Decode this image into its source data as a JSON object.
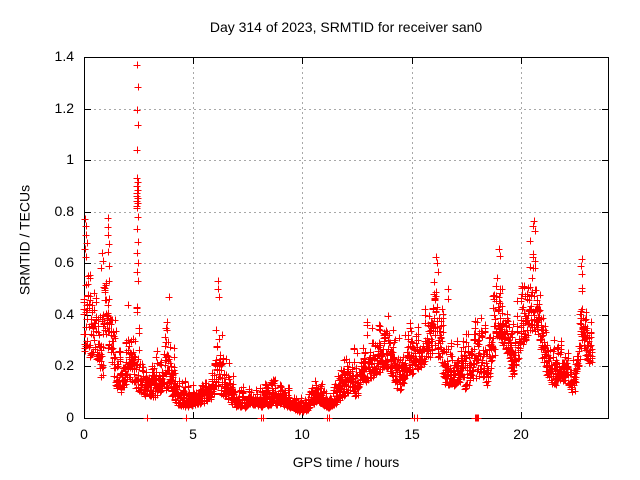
{
  "chart_data": {
    "type": "scatter",
    "title": "Day 314 of 2023, SRMTID for receiver san0",
    "xlabel": "GPS time / hours",
    "ylabel": "SRMTID / TECUs",
    "xlim": [
      0,
      24
    ],
    "ylim": [
      0,
      1.4
    ],
    "x_ticks": [
      0,
      5,
      10,
      15,
      20
    ],
    "y_ticks": [
      0,
      0.2,
      0.4,
      0.6,
      0.8,
      1,
      1.2,
      1.4
    ],
    "grid": true,
    "legend": "none",
    "marker": {
      "shape": "plus",
      "size": 7,
      "color": "#ff0000"
    },
    "axis_color": "#000000",
    "grid_color": "#a8a8a8",
    "series_name": "SRMTID",
    "envelope": [
      [
        0.0,
        0.22,
        0.78
      ],
      [
        0.15,
        0.25,
        0.77
      ],
      [
        0.3,
        0.22,
        0.62
      ],
      [
        0.5,
        0.25,
        0.5
      ],
      [
        0.7,
        0.18,
        0.55
      ],
      [
        0.85,
        0.15,
        0.65
      ],
      [
        1.05,
        0.28,
        0.77
      ],
      [
        1.25,
        0.25,
        0.6
      ],
      [
        1.45,
        0.12,
        0.4
      ],
      [
        1.65,
        0.1,
        0.32
      ],
      [
        1.85,
        0.12,
        0.38
      ],
      [
        2.05,
        0.15,
        0.46
      ],
      [
        2.25,
        0.12,
        0.42
      ],
      [
        2.45,
        0.1,
        0.5
      ],
      [
        2.65,
        0.1,
        0.3
      ],
      [
        2.85,
        0.08,
        0.26
      ],
      [
        3.05,
        0.08,
        0.3
      ],
      [
        3.3,
        0.08,
        0.28
      ],
      [
        3.6,
        0.1,
        0.33
      ],
      [
        3.9,
        0.12,
        0.45
      ],
      [
        4.05,
        0.08,
        0.35
      ],
      [
        4.3,
        0.05,
        0.18
      ],
      [
        4.6,
        0.04,
        0.15
      ],
      [
        4.9,
        0.04,
        0.14
      ],
      [
        5.2,
        0.05,
        0.16
      ],
      [
        5.5,
        0.06,
        0.22
      ],
      [
        5.8,
        0.07,
        0.2
      ],
      [
        6.05,
        0.1,
        0.45
      ],
      [
        6.2,
        0.1,
        0.5
      ],
      [
        6.4,
        0.07,
        0.28
      ],
      [
        6.7,
        0.06,
        0.22
      ],
      [
        7.0,
        0.04,
        0.14
      ],
      [
        7.4,
        0.04,
        0.13
      ],
      [
        7.8,
        0.05,
        0.15
      ],
      [
        8.2,
        0.04,
        0.16
      ],
      [
        8.5,
        0.05,
        0.18
      ],
      [
        8.9,
        0.05,
        0.16
      ],
      [
        9.3,
        0.04,
        0.13
      ],
      [
        9.7,
        0.03,
        0.1
      ],
      [
        10.0,
        0.02,
        0.08
      ],
      [
        10.3,
        0.03,
        0.1
      ],
      [
        10.6,
        0.06,
        0.18
      ],
      [
        10.9,
        0.05,
        0.14
      ],
      [
        11.15,
        0.03,
        0.1
      ],
      [
        11.45,
        0.05,
        0.16
      ],
      [
        11.75,
        0.07,
        0.22
      ],
      [
        12.0,
        0.09,
        0.3
      ],
      [
        12.25,
        0.1,
        0.33
      ],
      [
        12.5,
        0.08,
        0.28
      ],
      [
        12.75,
        0.12,
        0.32
      ],
      [
        13.0,
        0.14,
        0.4
      ],
      [
        13.25,
        0.15,
        0.36
      ],
      [
        13.5,
        0.17,
        0.4
      ],
      [
        13.75,
        0.2,
        0.44
      ],
      [
        14.0,
        0.18,
        0.45
      ],
      [
        14.25,
        0.14,
        0.38
      ],
      [
        14.5,
        0.08,
        0.3
      ],
      [
        14.75,
        0.15,
        0.38
      ],
      [
        15.0,
        0.17,
        0.42
      ],
      [
        15.25,
        0.18,
        0.4
      ],
      [
        15.5,
        0.2,
        0.44
      ],
      [
        15.8,
        0.22,
        0.48
      ],
      [
        16.1,
        0.25,
        0.6
      ],
      [
        16.35,
        0.2,
        0.48
      ],
      [
        16.6,
        0.12,
        0.35
      ],
      [
        16.9,
        0.12,
        0.32
      ],
      [
        17.2,
        0.13,
        0.33
      ],
      [
        17.5,
        0.1,
        0.35
      ],
      [
        17.75,
        0.15,
        0.4
      ],
      [
        18.0,
        0.15,
        0.4
      ],
      [
        18.25,
        0.16,
        0.44
      ],
      [
        18.5,
        0.12,
        0.45
      ],
      [
        18.75,
        0.22,
        0.55
      ],
      [
        18.95,
        0.28,
        0.63
      ],
      [
        19.15,
        0.28,
        0.6
      ],
      [
        19.4,
        0.25,
        0.5
      ],
      [
        19.65,
        0.15,
        0.42
      ],
      [
        19.9,
        0.22,
        0.48
      ],
      [
        20.1,
        0.28,
        0.6
      ],
      [
        20.35,
        0.32,
        0.72
      ],
      [
        20.6,
        0.35,
        0.77
      ],
      [
        20.8,
        0.3,
        0.68
      ],
      [
        21.0,
        0.22,
        0.5
      ],
      [
        21.25,
        0.15,
        0.4
      ],
      [
        21.5,
        0.12,
        0.33
      ],
      [
        21.8,
        0.14,
        0.35
      ],
      [
        22.1,
        0.15,
        0.33
      ],
      [
        22.4,
        0.08,
        0.28
      ],
      [
        22.65,
        0.18,
        0.4
      ],
      [
        22.85,
        0.28,
        0.59
      ],
      [
        23.05,
        0.22,
        0.48
      ],
      [
        23.3,
        0.2,
        0.4
      ]
    ],
    "outlier_points": [
      [
        2.44,
        1.37
      ],
      [
        2.46,
        1.285
      ],
      [
        2.44,
        1.195
      ],
      [
        2.465,
        1.135
      ],
      [
        2.45,
        1.04
      ],
      [
        2.43,
        0.93
      ],
      [
        2.46,
        0.915
      ],
      [
        2.44,
        0.9
      ],
      [
        2.465,
        0.885
      ],
      [
        2.45,
        0.873
      ],
      [
        2.432,
        0.862
      ],
      [
        2.458,
        0.852
      ],
      [
        2.443,
        0.843
      ],
      [
        2.468,
        0.835
      ],
      [
        2.45,
        0.824
      ],
      [
        2.437,
        0.815
      ],
      [
        2.455,
        0.78
      ],
      [
        2.44,
        0.732
      ],
      [
        2.462,
        0.683
      ],
      [
        2.447,
        0.64
      ],
      [
        2.453,
        0.6
      ],
      [
        2.44,
        0.565
      ],
      [
        2.46,
        0.53
      ],
      [
        1.1,
        0.775
      ],
      [
        1.12,
        0.74
      ],
      [
        1.09,
        0.71
      ],
      [
        1.13,
        0.675
      ],
      [
        1.11,
        0.645
      ],
      [
        1.14,
        0.59
      ],
      [
        0.06,
        0.77
      ],
      [
        0.1,
        0.745
      ],
      [
        0.08,
        0.71
      ],
      [
        0.12,
        0.68
      ],
      [
        0.05,
        0.655
      ],
      [
        0.09,
        0.625
      ],
      [
        0.82,
        0.64
      ],
      [
        0.85,
        0.61
      ],
      [
        0.8,
        0.58
      ],
      [
        3.88,
        0.47
      ],
      [
        6.15,
        0.53
      ],
      [
        6.13,
        0.5
      ],
      [
        6.17,
        0.47
      ],
      [
        16.13,
        0.625
      ],
      [
        16.17,
        0.6
      ],
      [
        16.2,
        0.565
      ],
      [
        16.65,
        0.5
      ],
      [
        16.68,
        0.46
      ],
      [
        19.0,
        0.655
      ],
      [
        19.05,
        0.63
      ],
      [
        20.62,
        0.765
      ],
      [
        20.58,
        0.745
      ],
      [
        20.66,
        0.725
      ],
      [
        22.8,
        0.615
      ],
      [
        22.77,
        0.59
      ],
      [
        22.83,
        0.56
      ]
    ],
    "zero_points": [
      [
        2.9,
        0
      ],
      [
        4.65,
        0
      ],
      [
        8.1,
        0
      ],
      [
        8.22,
        0
      ],
      [
        11.12,
        0
      ],
      [
        11.24,
        0
      ],
      [
        15.13,
        0
      ],
      [
        15.25,
        0
      ],
      [
        17.9,
        0
      ],
      [
        17.94,
        0
      ],
      [
        17.98,
        0
      ],
      [
        18.02,
        0
      ],
      [
        18.06,
        0
      ]
    ],
    "render": {
      "seed": 314,
      "column_step": 0.045,
      "x_start": 0.0,
      "x_end": 23.3
    }
  }
}
